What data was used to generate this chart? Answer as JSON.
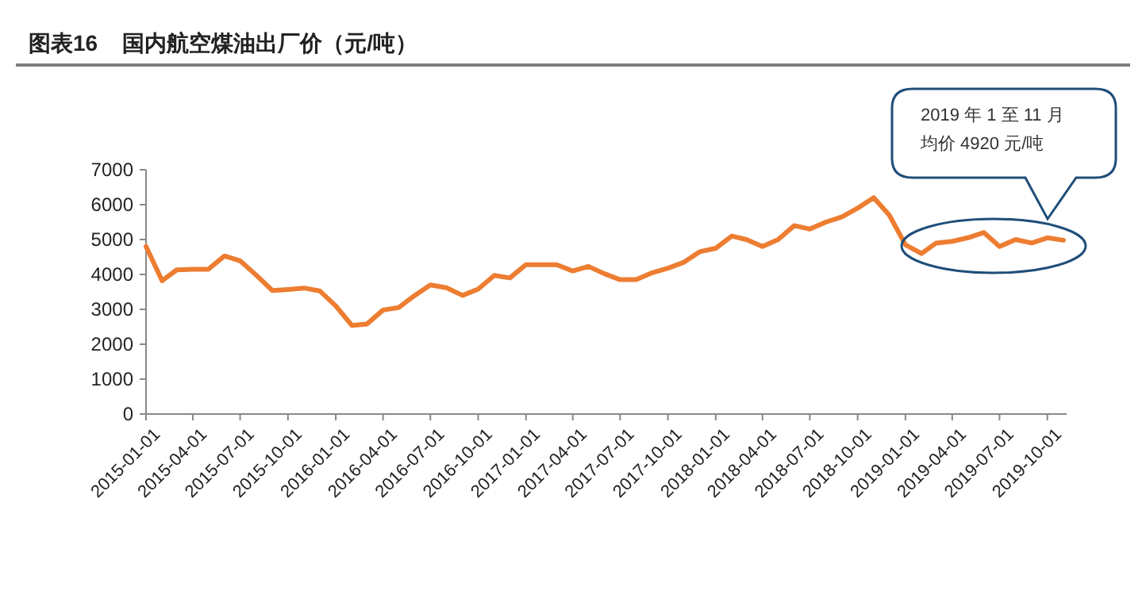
{
  "chart_data": {
    "type": "line",
    "title": "图表16    国内航空煤油出厂价（元/吨）",
    "x": [
      "2015-01",
      "2015-02",
      "2015-03",
      "2015-04",
      "2015-05",
      "2015-06",
      "2015-07",
      "2015-08",
      "2015-09",
      "2015-10",
      "2015-11",
      "2015-12",
      "2016-01",
      "2016-02",
      "2016-03",
      "2016-04",
      "2016-05",
      "2016-06",
      "2016-07",
      "2016-08",
      "2016-09",
      "2016-10",
      "2016-11",
      "2016-12",
      "2017-01",
      "2017-02",
      "2017-03",
      "2017-04",
      "2017-05",
      "2017-06",
      "2017-07",
      "2017-08",
      "2017-09",
      "2017-10",
      "2017-11",
      "2017-12",
      "2018-01",
      "2018-02",
      "2018-03",
      "2018-04",
      "2018-05",
      "2018-06",
      "2018-07",
      "2018-08",
      "2018-09",
      "2018-10",
      "2018-11",
      "2018-12",
      "2019-01",
      "2019-02",
      "2019-03",
      "2019-04",
      "2019-05",
      "2019-06",
      "2019-07",
      "2019-08",
      "2019-09",
      "2019-10",
      "2019-11"
    ],
    "series": [
      {
        "color": "#ed7d31",
        "values": [
          4800,
          3820,
          4130,
          4150,
          4150,
          4530,
          4390,
          3980,
          3540,
          3570,
          3610,
          3530,
          3100,
          2540,
          2580,
          2980,
          3050,
          3400,
          3700,
          3620,
          3400,
          3580,
          3970,
          3900,
          4280,
          4280,
          4280,
          4100,
          4230,
          4020,
          3850,
          3850,
          4050,
          4180,
          4350,
          4650,
          4750,
          5100,
          5000,
          4800,
          5000,
          5400,
          5300,
          5500,
          5650,
          5900,
          6200,
          5700,
          4850,
          4600,
          4900,
          4950,
          5050,
          5200,
          4800,
          5000,
          4900,
          5050,
          4980
        ]
      }
    ],
    "ylim": [
      0,
      7000
    ],
    "yticks": [
      0,
      1000,
      2000,
      3000,
      4000,
      5000,
      6000,
      7000
    ],
    "xlim": [
      "2015-01",
      "2019-11"
    ],
    "xticks": [
      "2015-01-01",
      "2015-04-01",
      "2015-07-01",
      "2015-10-01",
      "2016-01-01",
      "2016-04-01",
      "2016-07-01",
      "2016-10-01",
      "2017-01-01",
      "2017-04-01",
      "2017-07-01",
      "2017-10-01",
      "2018-01-01",
      "2018-04-01",
      "2018-07-01",
      "2018-10-01",
      "2019-01-01",
      "2019-04-01",
      "2019-07-01",
      "2019-10-01"
    ],
    "grid": false,
    "marker": "none",
    "line_style": "solid",
    "annotations": [
      "2019 年 1 至 11 月",
      "均价 4920 元/吨"
    ]
  }
}
